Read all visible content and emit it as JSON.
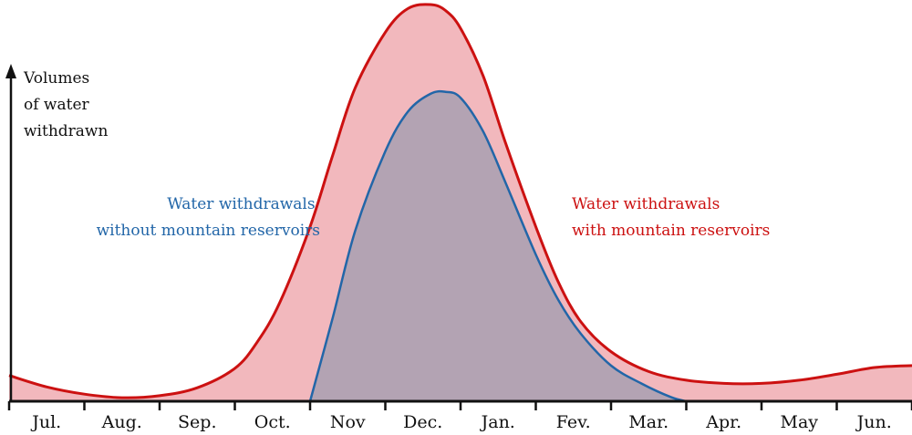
{
  "chart_data": {
    "type": "area",
    "title": "",
    "ylabel_lines": [
      "Volumes",
      "of water",
      "withdrawn"
    ],
    "xlabel": "",
    "categories": [
      "Jul.",
      "Aug.",
      "Sep.",
      "Oct.",
      "Nov",
      "Dec.",
      "Jan.",
      "Fev.",
      "Mar.",
      "Apr.",
      "May",
      "Jun."
    ],
    "x_range": [
      0,
      12
    ],
    "y_range": [
      0,
      1
    ],
    "grid": false,
    "series": [
      {
        "name": "with mountain reservoirs",
        "label_lines": [
          "Water withdrawals",
          "with mountain reservoirs"
        ],
        "color": "#cc1111",
        "fill": "#f2b8bd",
        "x": [
          0,
          0.5,
          1.0,
          1.5,
          2.0,
          2.5,
          3.0,
          3.3,
          3.6,
          4.0,
          4.3,
          4.6,
          5.0,
          5.3,
          5.6,
          5.8,
          6.0,
          6.3,
          6.6,
          7.0,
          7.3,
          7.6,
          8.0,
          8.5,
          9.0,
          9.5,
          10.0,
          10.5,
          11.0,
          11.5,
          12.0
        ],
        "y": [
          0.065,
          0.036,
          0.018,
          0.009,
          0.014,
          0.034,
          0.083,
          0.15,
          0.25,
          0.44,
          0.62,
          0.79,
          0.93,
          0.99,
          1.0,
          0.985,
          0.94,
          0.82,
          0.65,
          0.44,
          0.3,
          0.2,
          0.125,
          0.075,
          0.053,
          0.045,
          0.045,
          0.053,
          0.068,
          0.085,
          0.09
        ]
      },
      {
        "name": "without mountain reservoirs",
        "label_lines": [
          "Water withdrawals",
          "without mountain reservoirs"
        ],
        "color": "#2266a8",
        "fill": "#b3a3b3",
        "x": [
          4.0,
          4.3,
          4.6,
          5.0,
          5.3,
          5.6,
          5.8,
          6.0,
          6.3,
          6.6,
          7.0,
          7.3,
          7.6,
          8.0,
          8.4,
          8.8,
          9.0
        ],
        "y": [
          0.0,
          0.21,
          0.43,
          0.63,
          0.73,
          0.775,
          0.78,
          0.765,
          0.68,
          0.55,
          0.37,
          0.255,
          0.17,
          0.09,
          0.045,
          0.01,
          0.0
        ]
      }
    ]
  }
}
